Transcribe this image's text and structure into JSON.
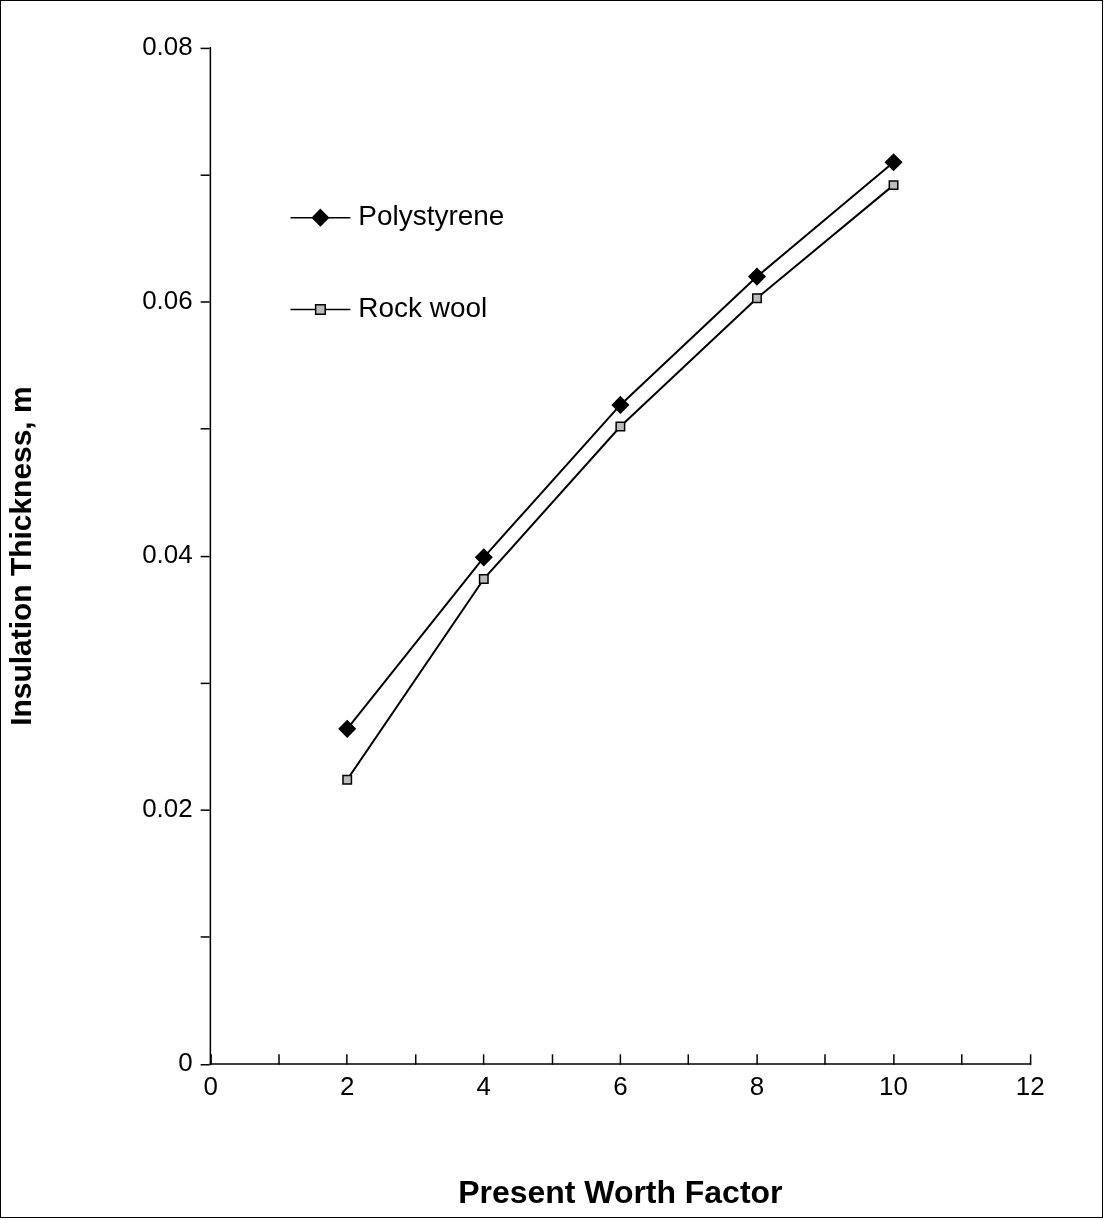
{
  "chart_data": {
    "type": "line",
    "xlabel": "Present Worth Factor",
    "ylabel": "Insulation Thickness, m",
    "x": [
      2,
      4,
      6,
      8,
      10
    ],
    "series": [
      {
        "name": "Polystyrene",
        "color": "#000000",
        "marker": "diamond",
        "values": [
          0.0264,
          0.0399,
          0.0519,
          0.062,
          0.071
        ]
      },
      {
        "name": "Rock wool",
        "color": "#000000",
        "marker": "square",
        "values": [
          0.0224,
          0.0382,
          0.0502,
          0.0603,
          0.0692
        ]
      }
    ],
    "xlim": [
      0,
      12
    ],
    "xticks": [
      0,
      {
        "value": 1,
        "label": null
      },
      2,
      {
        "value": 3,
        "label": null
      },
      4,
      {
        "value": 5,
        "label": null
      },
      6,
      {
        "value": 7,
        "label": null
      },
      8,
      {
        "value": 9,
        "label": null
      },
      10,
      {
        "value": 11,
        "label": null
      },
      12
    ],
    "ylim": [
      0,
      0.08
    ],
    "yticks": [
      0,
      {
        "value": 0.01,
        "label": null
      },
      0.02,
      {
        "value": 0.03,
        "label": null
      },
      0.04,
      {
        "value": 0.05,
        "label": null
      },
      0.06,
      {
        "value": 0.07,
        "label": null
      },
      0.08
    ],
    "grid": false,
    "legend": "top left",
    "line_style": "solid"
  }
}
